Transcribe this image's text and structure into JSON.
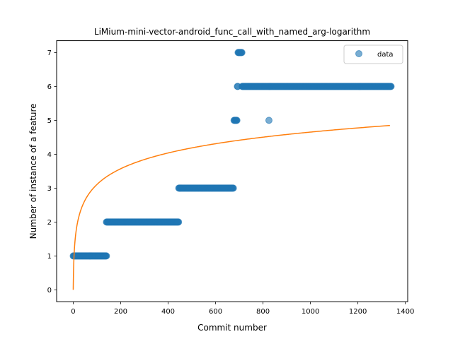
{
  "chart_data": {
    "type": "scatter",
    "title": "LiMium-mini-vector-android_func_call_with_named_arg-logarithm",
    "xlabel": "Commit number",
    "ylabel": "Number of instance of a feature",
    "xlim": [
      -70,
      1410
    ],
    "ylim": [
      -0.35,
      7.35
    ],
    "xticks": [
      0,
      200,
      400,
      600,
      800,
      1000,
      1200,
      1400
    ],
    "yticks": [
      0,
      1,
      2,
      3,
      4,
      5,
      6,
      7
    ],
    "grid": false,
    "legend_position": "top-right",
    "legend": [
      "data"
    ],
    "colors": {
      "data": "#1f77b4",
      "fit": "#ff7f0e"
    },
    "series": [
      {
        "name": "data",
        "kind": "scatter",
        "segments": [
          {
            "x_start": 0,
            "x_end": 140,
            "y": 1
          },
          {
            "x_start": 140,
            "x_end": 445,
            "y": 2
          },
          {
            "x_start": 445,
            "x_end": 675,
            "y": 3
          },
          {
            "x_start": 678,
            "x_end": 690,
            "y": 5
          },
          {
            "x_start": 692,
            "x_end": 695,
            "y": 6
          },
          {
            "x_start": 695,
            "x_end": 712,
            "y": 7
          },
          {
            "x_start": 712,
            "x_end": 1340,
            "y": 6
          }
        ],
        "points": [
          {
            "x": 825,
            "y": 5
          }
        ]
      },
      {
        "kind": "line",
        "formula": "y = 0.6736 * ln(x + 1)",
        "coef": 0.6736,
        "x_range": [
          0,
          1335
        ]
      }
    ]
  }
}
